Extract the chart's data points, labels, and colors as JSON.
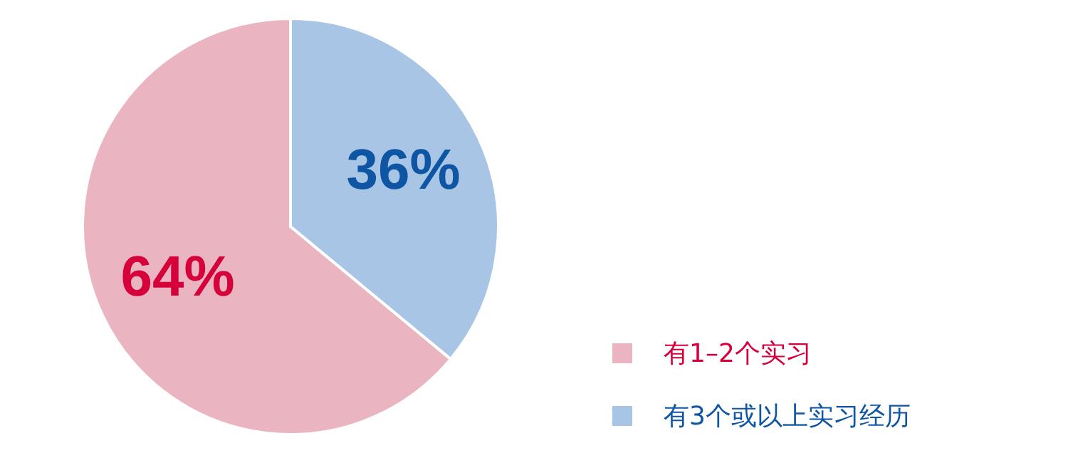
{
  "chart_data": {
    "type": "pie",
    "categories": [
      "有1–2个实习",
      "有3个或以上实习经历"
    ],
    "values": [
      64,
      36
    ],
    "colors": [
      "#eab4c1",
      "#a9c5e5"
    ],
    "value_labels": [
      "64%",
      "36%"
    ],
    "legend": "bottom right"
  }
}
